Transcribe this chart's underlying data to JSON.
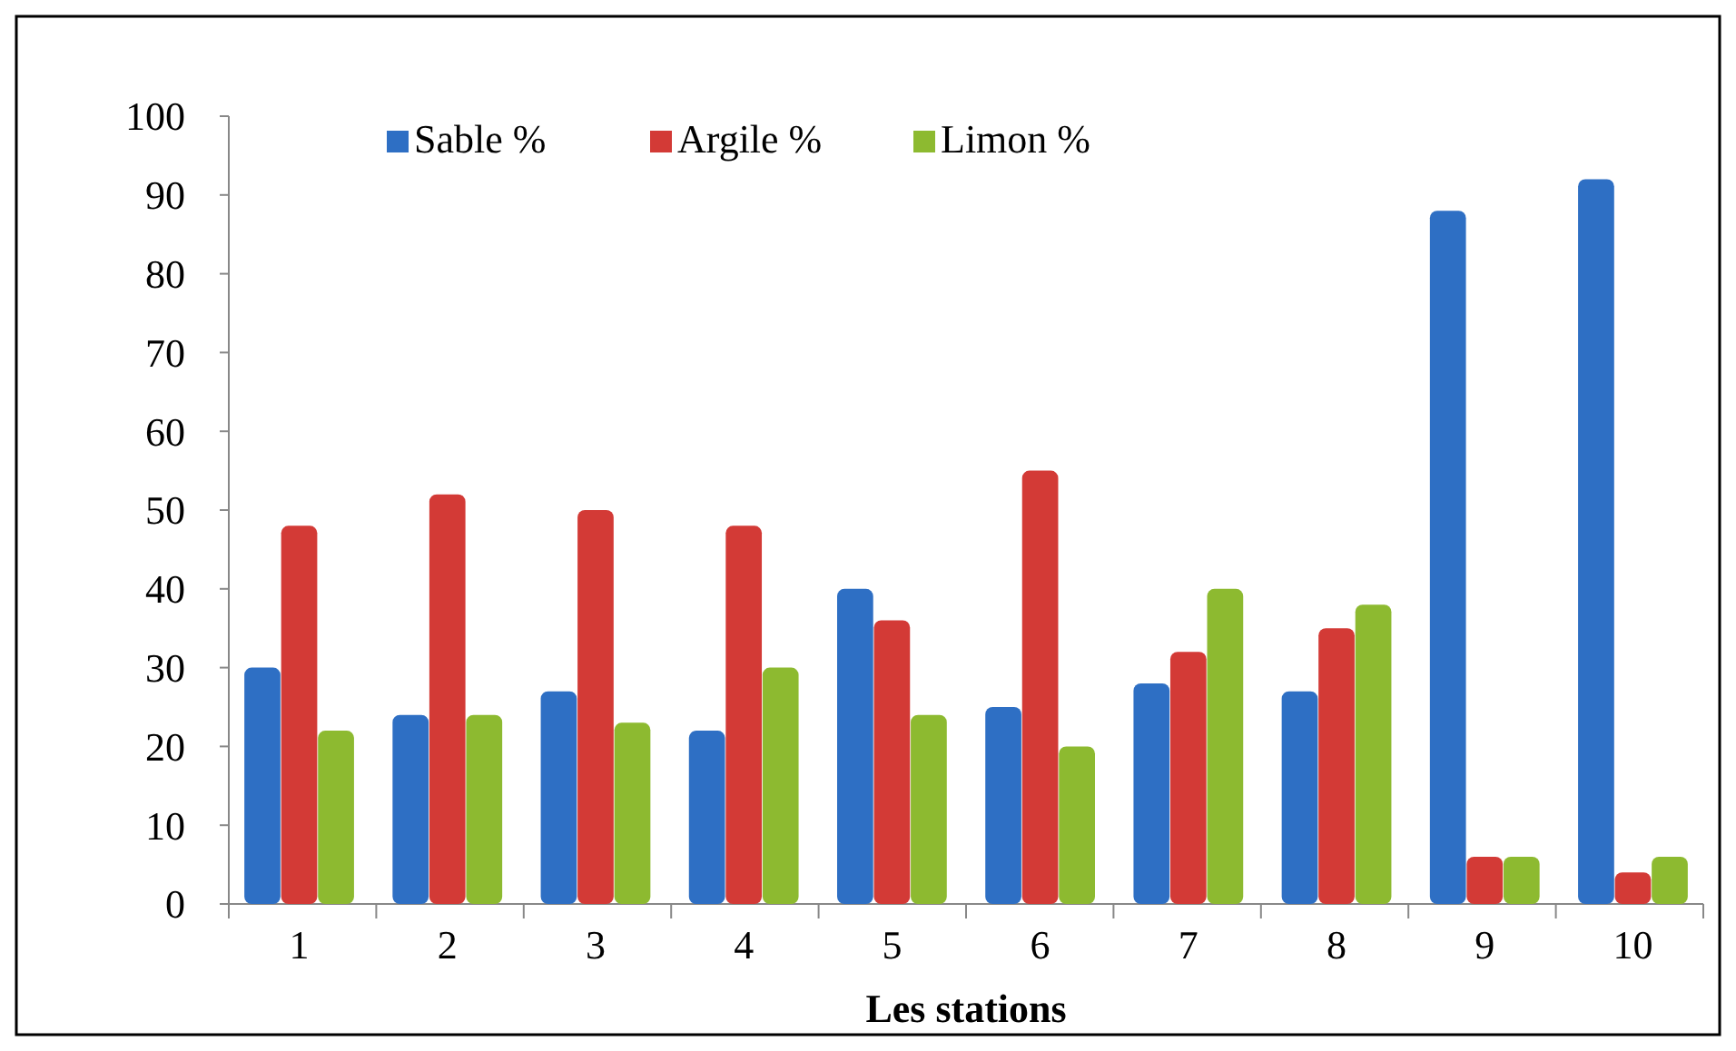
{
  "chart_data": {
    "type": "bar",
    "xlabel": "Les stations",
    "categories": [
      "1",
      "2",
      "3",
      "4",
      "5",
      "6",
      "7",
      "8",
      "9",
      "10"
    ],
    "series": [
      {
        "name": "Sable %",
        "color": "#2e6fc4",
        "values": [
          30,
          24,
          27,
          22,
          40,
          25,
          28,
          27,
          88,
          92
        ]
      },
      {
        "name": "Argile %",
        "color": "#d33a36",
        "values": [
          48,
          52,
          50,
          48,
          36,
          55,
          32,
          35,
          6,
          4
        ]
      },
      {
        "name": "Limon %",
        "color": "#8dba30",
        "values": [
          22,
          24,
          23,
          30,
          24,
          20,
          40,
          38,
          6,
          6
        ]
      }
    ],
    "ylim": [
      0,
      100
    ],
    "yticks": [
      0,
      10,
      20,
      30,
      40,
      50,
      60,
      70,
      80,
      90,
      100
    ],
    "grid": false,
    "legend": "top left"
  }
}
